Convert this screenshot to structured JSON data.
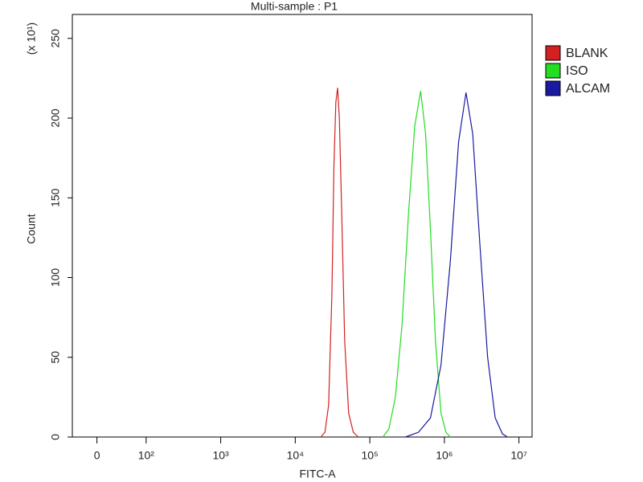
{
  "chart_data": {
    "type": "line",
    "title": "Multi-sample : P1",
    "xlabel": "FITC-A",
    "ylabel": "Count",
    "y_multiplier": "(x 10¹)",
    "xscale": "biexponential",
    "xlim": [
      -50,
      15000000
    ],
    "ylim": [
      0,
      265
    ],
    "xticks": [
      0,
      {
        "value": 100,
        "label": "10²"
      },
      {
        "value": 1000,
        "label": "10³"
      },
      {
        "value": 10000,
        "label": "10⁴"
      },
      {
        "value": 100000,
        "label": "10⁵"
      },
      {
        "value": 1000000,
        "label": "10⁶"
      },
      {
        "value": 10000000,
        "label": "10⁷"
      }
    ],
    "yticks": [
      0,
      50,
      100,
      150,
      200,
      250
    ],
    "legend": "right",
    "series": [
      {
        "name": "BLANK",
        "color": "#d42020",
        "x": [
          22000,
          25000,
          28000,
          31000,
          33000,
          35000,
          37000,
          39000,
          42000,
          46000,
          52000,
          60000,
          70000
        ],
        "values": [
          0,
          3,
          20,
          90,
          170,
          210,
          219,
          200,
          140,
          60,
          15,
          3,
          0
        ]
      },
      {
        "name": "ISO",
        "color": "#22dd22",
        "x": [
          150000,
          180000,
          220000,
          270000,
          330000,
          400000,
          480000,
          560000,
          650000,
          760000,
          900000,
          1050000,
          1200000
        ],
        "values": [
          0,
          5,
          25,
          70,
          140,
          195,
          217,
          190,
          130,
          60,
          15,
          3,
          0
        ]
      },
      {
        "name": "ALCAM",
        "color": "#1a1aa0",
        "x": [
          300000,
          450000,
          650000,
          900000,
          1200000,
          1550000,
          1950000,
          2400000,
          3000000,
          3800000,
          4800000,
          6000000,
          7000000
        ],
        "values": [
          0,
          3,
          12,
          45,
          110,
          185,
          216,
          190,
          120,
          50,
          12,
          2,
          0
        ]
      }
    ]
  }
}
